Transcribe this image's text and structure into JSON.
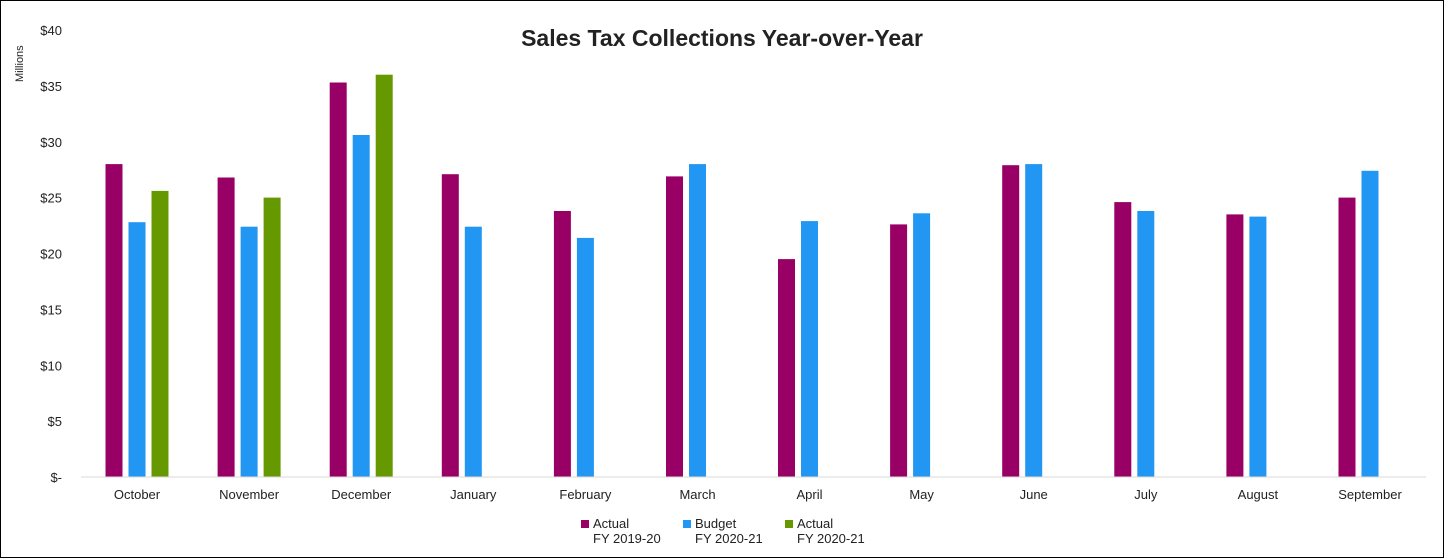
{
  "chart_data": {
    "type": "bar",
    "title": "Sales Tax Collections Year-over-Year",
    "ylabel": "Millions",
    "xlabel": "",
    "ylim": [
      0,
      40
    ],
    "yticks": [
      0,
      5,
      10,
      15,
      20,
      25,
      30,
      35,
      40
    ],
    "ytick_labels": [
      "$-",
      "$5",
      "$10",
      "$15",
      "$20",
      "$25",
      "$30",
      "$35",
      "$40"
    ],
    "categories": [
      "October",
      "November",
      "December",
      "January",
      "February",
      "March",
      "April",
      "May",
      "June",
      "July",
      "August",
      "September"
    ],
    "series": [
      {
        "name": "Actual FY 2019-20",
        "legend_lines": [
          "Actual",
          "FY 2019-20"
        ],
        "color": "#990066",
        "values": [
          28.0,
          26.8,
          35.3,
          27.1,
          23.8,
          26.9,
          19.5,
          22.6,
          27.9,
          24.6,
          23.5,
          25.0
        ]
      },
      {
        "name": "Budget FY 2020-21",
        "legend_lines": [
          "Budget",
          "FY 2020-21"
        ],
        "color": "#2196F3",
        "values": [
          22.8,
          22.4,
          30.6,
          22.4,
          21.4,
          28.0,
          22.9,
          23.6,
          28.0,
          23.8,
          23.3,
          27.4
        ]
      },
      {
        "name": "Actual FY 2020-21",
        "legend_lines": [
          "Actual",
          "FY 2020-21"
        ],
        "color": "#669900",
        "values": [
          25.6,
          25.0,
          36.0,
          null,
          null,
          null,
          null,
          null,
          null,
          null,
          null,
          null
        ]
      }
    ],
    "grid": false,
    "legend_position": "bottom"
  }
}
